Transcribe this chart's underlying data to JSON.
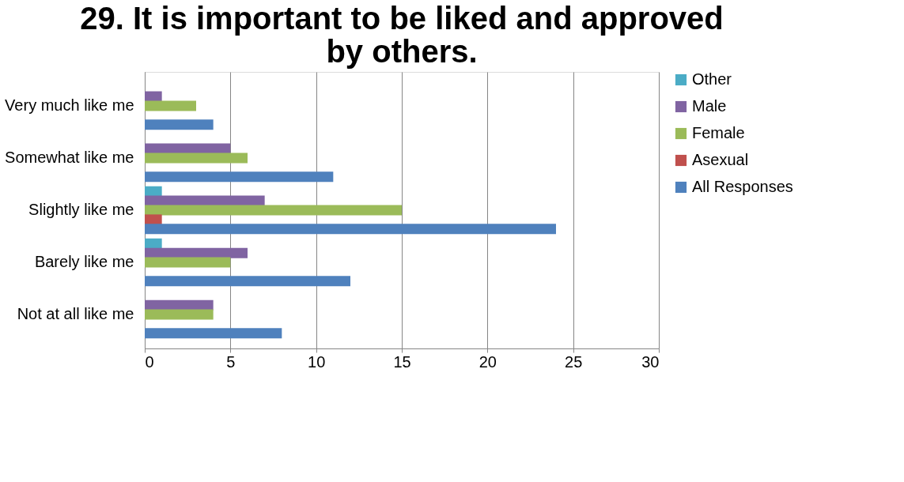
{
  "chart_data": {
    "type": "bar",
    "orientation": "horizontal",
    "title": "29. It is important to be liked and approved by others.",
    "categories": [
      "Very much like me",
      "Somewhat like me",
      "Slightly like me",
      "Barely like me",
      "Not at all like me"
    ],
    "series": [
      {
        "name": "Other",
        "color": "#4bacc6",
        "values": [
          0,
          0,
          1,
          1,
          0
        ]
      },
      {
        "name": "Male",
        "color": "#8064a2",
        "values": [
          1,
          5,
          7,
          6,
          4
        ]
      },
      {
        "name": "Female",
        "color": "#9bbb59",
        "values": [
          3,
          6,
          15,
          5,
          4
        ]
      },
      {
        "name": "Asexual",
        "color": "#c0504d",
        "values": [
          0,
          0,
          1,
          0,
          0
        ]
      },
      {
        "name": "All Responses",
        "color": "#4f81bd",
        "values": [
          4,
          11,
          24,
          12,
          8
        ]
      }
    ],
    "xlim": [
      0,
      30
    ],
    "xticks": [
      0,
      5,
      10,
      15,
      20,
      25,
      30
    ],
    "grid": "x",
    "legend": "right"
  }
}
